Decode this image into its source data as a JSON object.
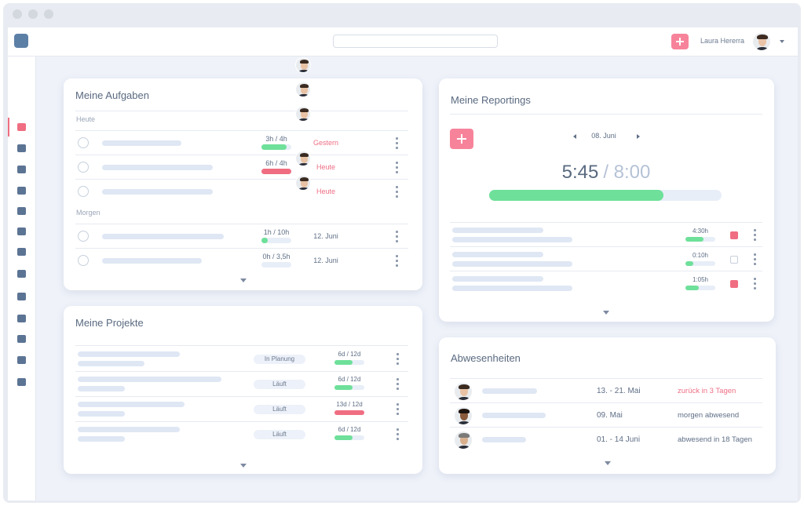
{
  "header": {
    "user_name": "Laura Hererra"
  },
  "tasks": {
    "title": "Meine Aufgaben",
    "groups": [
      {
        "label": "Heute",
        "rows": [
          {
            "time": "3h / 4h",
            "progress": 85,
            "bar_color": "#6ee09a",
            "due": "Gestern",
            "due_color": "#ee6f85"
          },
          {
            "time": "6h / 4h",
            "progress": 100,
            "bar_color": "#f06e82",
            "due": "Heute",
            "due_color": "#ee6f85"
          },
          {
            "due": "Heute",
            "due_color": "#ee6f85"
          }
        ]
      },
      {
        "label": "Morgen",
        "rows": [
          {
            "time": "1h / 10h",
            "progress": 20,
            "bar_color": "#6ee09a",
            "due": "12. Juni",
            "due_color": "#5f6f86"
          },
          {
            "time": "0h / 3,5h",
            "progress": 0,
            "bar_color": "#6ee09a",
            "due": "12. Juni",
            "due_color": "#5f6f86"
          }
        ]
      }
    ]
  },
  "projects": {
    "title": "Meine Projekte",
    "rows": [
      {
        "status": "In Planung",
        "time": "6d / 12d",
        "progress": 60,
        "bar_color": "#6ee09a"
      },
      {
        "status": "Läuft",
        "time": "6d / 12d",
        "progress": 60,
        "bar_color": "#6ee09a"
      },
      {
        "status": "Läuft",
        "time": "13d / 12d",
        "progress": 100,
        "bar_color": "#f06e82"
      },
      {
        "status": "Läuft",
        "time": "6d / 12d",
        "progress": 60,
        "bar_color": "#6ee09a"
      }
    ]
  },
  "reportings": {
    "title": "Meine Reportings",
    "date": "08. Juni",
    "hours": "5:45",
    "total": "/ 8:00",
    "progress": 75,
    "rows": [
      {
        "time": "4:30h",
        "progress": 60,
        "checked": true
      },
      {
        "time": "0:10h",
        "progress": 25,
        "checked": false
      },
      {
        "time": "1:05h",
        "progress": 45,
        "checked": true
      }
    ]
  },
  "absences": {
    "title": "Abwesenheiten",
    "rows": [
      {
        "dates": "13. - 21. Mai",
        "status": "zurück in 3 Tagen",
        "status_color": "#ee6f85"
      },
      {
        "dates": "09. Mai",
        "status": "morgen abwesend",
        "status_color": "#5f6f86"
      },
      {
        "dates": "01. - 14 Juni",
        "status": "abwesend in 18 Tagen",
        "status_color": "#5f6f86"
      }
    ]
  }
}
